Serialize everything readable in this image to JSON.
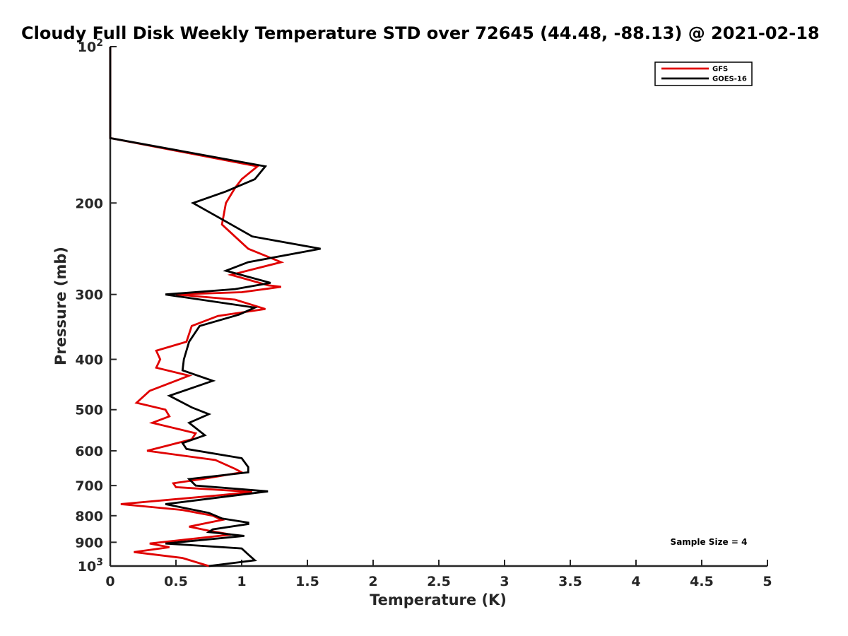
{
  "chart_data": {
    "type": "line",
    "title": "Cloudy Full Disk Weekly Temperature STD over 72645 (44.48, -88.13) @ 2021-02-18",
    "xlabel": "Temperature (K)",
    "ylabel": "Pressure (mb)",
    "xlim": [
      0,
      5
    ],
    "ylim": [
      100,
      1000
    ],
    "yscale": "log",
    "y_reversed": true,
    "x_ticks": [
      "0",
      "0.5",
      "1",
      "1.5",
      "2",
      "2.5",
      "3",
      "3.5",
      "4",
      "4.5",
      "5"
    ],
    "x_tick_values": [
      0,
      0.5,
      1,
      1.5,
      2,
      2.5,
      3,
      3.5,
      4,
      4.5,
      5
    ],
    "y_ticks": [
      {
        "value": 100,
        "base": "10",
        "exp": "2"
      },
      {
        "value": 200,
        "label": "200"
      },
      {
        "value": 300,
        "label": "300"
      },
      {
        "value": 400,
        "label": "400"
      },
      {
        "value": 500,
        "label": "500"
      },
      {
        "value": 600,
        "label": "600"
      },
      {
        "value": 700,
        "label": "700"
      },
      {
        "value": 800,
        "label": "800"
      },
      {
        "value": 900,
        "label": "900"
      },
      {
        "value": 1000,
        "base": "10",
        "exp": "3"
      }
    ],
    "grid": false,
    "legend_position": "top-right",
    "annotation": "Sample Size = 4",
    "series": [
      {
        "name": "GFS",
        "color": "#e00000",
        "points": [
          [
            0,
            100
          ],
          [
            0,
            150
          ],
          [
            1.12,
            170
          ],
          [
            1.0,
            180
          ],
          [
            0.95,
            187
          ],
          [
            0.88,
            200
          ],
          [
            0.85,
            220
          ],
          [
            1.05,
            245
          ],
          [
            1.3,
            260
          ],
          [
            0.92,
            275
          ],
          [
            1.2,
            288
          ],
          [
            1.3,
            290
          ],
          [
            1.0,
            297
          ],
          [
            0.5,
            300
          ],
          [
            0.95,
            307
          ],
          [
            1.18,
            320
          ],
          [
            0.82,
            330
          ],
          [
            0.62,
            345
          ],
          [
            0.58,
            370
          ],
          [
            0.35,
            385
          ],
          [
            0.38,
            400
          ],
          [
            0.35,
            415
          ],
          [
            0.6,
            430
          ],
          [
            0.3,
            460
          ],
          [
            0.2,
            485
          ],
          [
            0.42,
            500
          ],
          [
            0.45,
            515
          ],
          [
            0.32,
            530
          ],
          [
            0.65,
            555
          ],
          [
            0.62,
            570
          ],
          [
            0.45,
            585
          ],
          [
            0.28,
            600
          ],
          [
            0.8,
            625
          ],
          [
            0.95,
            650
          ],
          [
            1.0,
            660
          ],
          [
            0.7,
            680
          ],
          [
            0.48,
            693
          ],
          [
            0.5,
            705
          ],
          [
            1.08,
            720
          ],
          [
            0.85,
            730
          ],
          [
            0.08,
            760
          ],
          [
            0.55,
            780
          ],
          [
            0.78,
            800
          ],
          [
            0.85,
            815
          ],
          [
            0.6,
            840
          ],
          [
            0.75,
            855
          ],
          [
            0.92,
            870
          ],
          [
            0.3,
            905
          ],
          [
            0.45,
            920
          ],
          [
            0.18,
            940
          ],
          [
            0.55,
            965
          ],
          [
            0.75,
            1000
          ]
        ]
      },
      {
        "name": "GOES-16",
        "color": "#000000",
        "points": [
          [
            0,
            100
          ],
          [
            0,
            150
          ],
          [
            1.18,
            170
          ],
          [
            1.1,
            180
          ],
          [
            0.88,
            190
          ],
          [
            0.63,
            200
          ],
          [
            0.85,
            215
          ],
          [
            1.08,
            232
          ],
          [
            1.6,
            245
          ],
          [
            1.05,
            260
          ],
          [
            0.88,
            270
          ],
          [
            1.22,
            285
          ],
          [
            0.95,
            293
          ],
          [
            0.42,
            300
          ],
          [
            1.1,
            318
          ],
          [
            0.98,
            328
          ],
          [
            0.68,
            345
          ],
          [
            0.6,
            370
          ],
          [
            0.56,
            400
          ],
          [
            0.55,
            420
          ],
          [
            0.78,
            440
          ],
          [
            0.45,
            470
          ],
          [
            0.62,
            495
          ],
          [
            0.75,
            510
          ],
          [
            0.6,
            530
          ],
          [
            0.72,
            560
          ],
          [
            0.55,
            580
          ],
          [
            0.58,
            595
          ],
          [
            1.0,
            620
          ],
          [
            1.05,
            645
          ],
          [
            1.05,
            660
          ],
          [
            0.6,
            680
          ],
          [
            0.65,
            700
          ],
          [
            1.2,
            718
          ],
          [
            0.88,
            735
          ],
          [
            0.42,
            760
          ],
          [
            0.75,
            790
          ],
          [
            0.85,
            810
          ],
          [
            1.05,
            825
          ],
          [
            1.05,
            830
          ],
          [
            0.78,
            850
          ],
          [
            0.75,
            860
          ],
          [
            1.02,
            875
          ],
          [
            0.42,
            905
          ],
          [
            1.0,
            925
          ],
          [
            1.05,
            950
          ],
          [
            1.1,
            975
          ],
          [
            0.75,
            1000
          ]
        ]
      }
    ]
  }
}
